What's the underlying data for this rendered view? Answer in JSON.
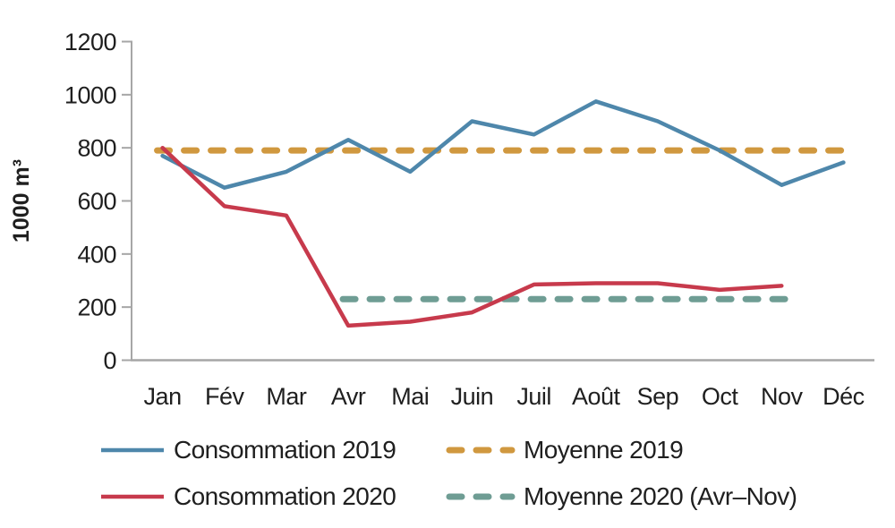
{
  "chart_data": {
    "type": "line",
    "title": "",
    "xlabel": "",
    "ylabel": "1000 m³",
    "categories": [
      "Jan",
      "Fév",
      "Mar",
      "Avr",
      "Mai",
      "Juin",
      "Juil",
      "Août",
      "Sep",
      "Oct",
      "Nov",
      "Déc"
    ],
    "ylim": [
      0,
      1200
    ],
    "ytick_step": 200,
    "yticks": [
      0,
      200,
      400,
      600,
      800,
      1000,
      1200
    ],
    "grid": false,
    "legend_position": "bottom",
    "series": [
      {
        "name": "Consommation 2019",
        "style": "solid",
        "color": "#4e87ab",
        "values": [
          770,
          650,
          710,
          830,
          710,
          900,
          850,
          975,
          900,
          790,
          660,
          745
        ]
      },
      {
        "name": "Consommation 2020",
        "style": "solid",
        "color": "#c73a4c",
        "values": [
          800,
          580,
          545,
          130,
          145,
          180,
          285,
          290,
          290,
          265,
          280,
          null
        ]
      },
      {
        "name": "Moyenne 2019",
        "style": "dashed",
        "color": "#d0983f",
        "value": 790,
        "span_months": [
          "Jan",
          "Déc"
        ],
        "span": [
          0,
          11
        ]
      },
      {
        "name": "Moyenne 2020 (Avr–Nov)",
        "style": "dashed",
        "color": "#6f9d94",
        "value": 230,
        "span_months": [
          "Avr",
          "Nov"
        ],
        "span": [
          3,
          10
        ]
      }
    ],
    "colors": {
      "axis": "#a6a6a6",
      "text": "#1f1f1f"
    }
  }
}
